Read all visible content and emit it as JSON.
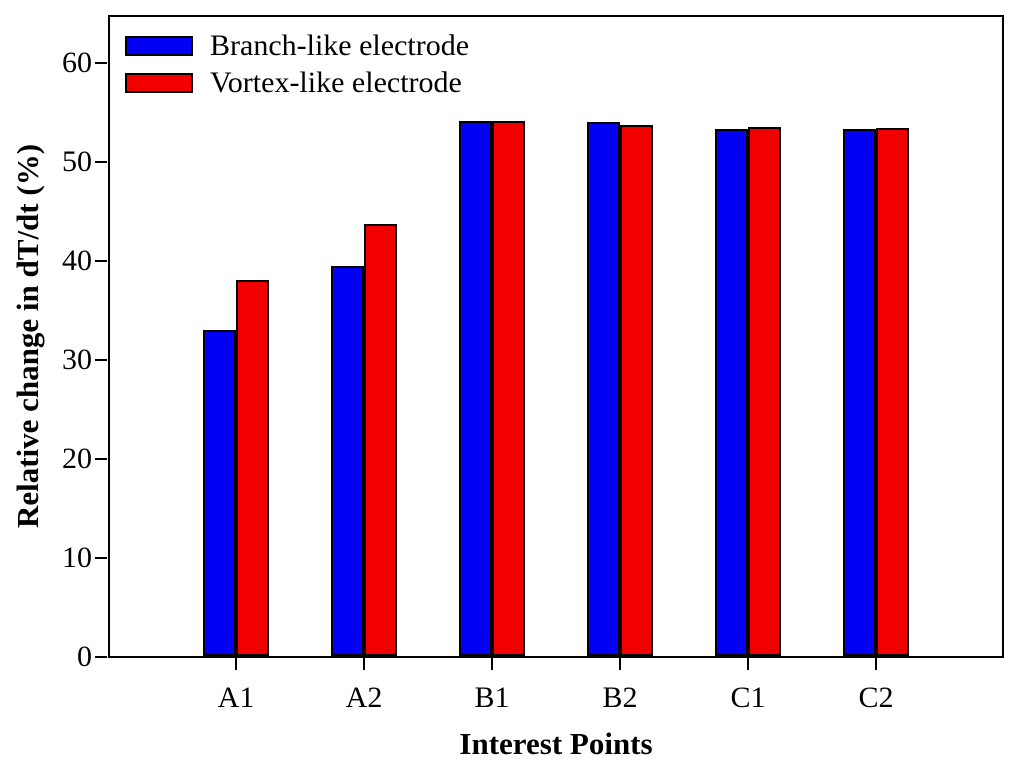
{
  "chart_data": {
    "type": "bar",
    "title": "",
    "xlabel": "Interest Points",
    "ylabel": "Relative change in dT/dt (%)",
    "categories": [
      "A1",
      "A2",
      "B1",
      "B2",
      "C1",
      "C2"
    ],
    "series": [
      {
        "name": "Branch-like electrode",
        "color": "#0000f2",
        "values": [
          33.0,
          39.4,
          54.1,
          54.0,
          53.3,
          53.3
        ]
      },
      {
        "name": "Vortex-like electrode",
        "color": "#f20000",
        "values": [
          38.0,
          43.7,
          54.1,
          53.7,
          53.5,
          53.4
        ]
      }
    ],
    "ylim": [
      0,
      65
    ],
    "yticks": [
      0,
      10,
      20,
      30,
      40,
      50,
      60
    ],
    "grid": false,
    "legend_position": "top-left",
    "frame_color": "#000000",
    "background_color": "#ffffff"
  }
}
